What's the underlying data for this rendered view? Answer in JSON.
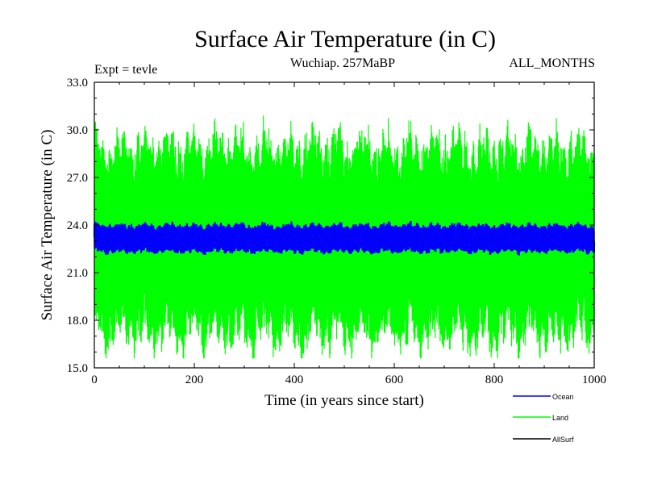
{
  "header": {
    "title": "Surface Air Temperature (in C)",
    "experiment": "Expt = tevle",
    "period": "Wuchiap. 257MaBP",
    "months": "ALL_MONTHS"
  },
  "chart_data": {
    "type": "line",
    "title": "Surface Air Temperature (in C)",
    "xlabel": "Time (in years since start)",
    "ylabel": "Surface Air Temperature (in C)",
    "xlim": [
      0,
      1000
    ],
    "ylim": [
      15.0,
      33.0
    ],
    "x_ticks": [
      0,
      200,
      400,
      600,
      800,
      1000
    ],
    "y_ticks": [
      "15.0",
      "18.0",
      "21.0",
      "24.0",
      "27.0",
      "30.0",
      "33.0"
    ],
    "legend_position": "bottom-right",
    "series": [
      {
        "name": "Land",
        "color": "#00ff00",
        "description": "oscillating monthly land temperature",
        "center": 23.0,
        "upper_envelope_typical": 28.5,
        "lower_envelope_typical": 17.5,
        "max": 30.9,
        "min": 15.6
      },
      {
        "name": "Ocean",
        "color": "#0000ff",
        "center": 23.1,
        "upper_envelope_typical": 23.9,
        "lower_envelope_typical": 22.4,
        "max": 24.6,
        "min": 21.7
      },
      {
        "name": "AllSurf",
        "color": "#000000"
      }
    ]
  }
}
